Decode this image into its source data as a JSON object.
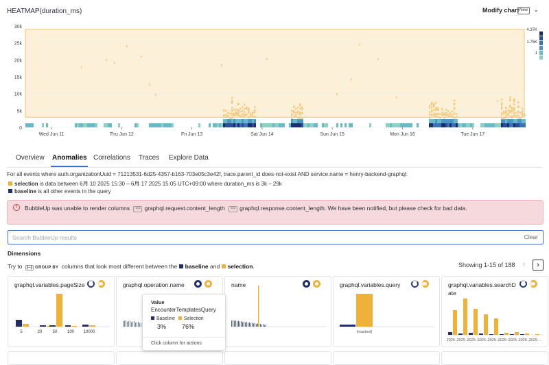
{
  "header": {
    "title": "HEATMAP(duration_ms)",
    "modify_label": "Modify chart",
    "new_badge": "New"
  },
  "chart_data": {
    "type": "heatmap",
    "y_ticks": [
      "30k",
      "25k",
      "20k",
      "15k",
      "10k",
      "5k",
      "0"
    ],
    "x_ticks": [
      "Wed Jun 11",
      "Thu Jun 12",
      "Fri Jun 13",
      "Sat Jun 14",
      "Sun Jun 15",
      "Mon Jun 16",
      "Tue Jun 17"
    ],
    "ylim": [
      0,
      30000
    ],
    "color_scale": {
      "labels": [
        "4.37K",
        "1.75K",
        "1"
      ],
      "colors": [
        "#1f2c6e",
        "#2a4d9c",
        "#3c72b8",
        "#4b96c4",
        "#6ab9c7",
        "#8fd0c2"
      ]
    },
    "selection": {
      "y_range": [
        3000,
        29000
      ],
      "color": "#f5a623"
    }
  },
  "tabs": [
    {
      "label": "Overview"
    },
    {
      "label": "Anomalies"
    },
    {
      "label": "Correlations"
    },
    {
      "label": "Traces"
    },
    {
      "label": "Explore Data"
    }
  ],
  "filter_text": "For all events where auth.organizationUuid = 71213531-6d25-4357-b163-703e05c3e42f, trace.parent_id does-not-exist AND service.name = henry-backend-graphql:",
  "legend": {
    "selection_bold": "selection",
    "selection_text": " is data between 6月 10 2025 15:30 – 6月 17 2025 15:05 UTC+09:00 where duration_ms is 3k – 29k",
    "baseline_bold": "baseline",
    "baseline_text": " is all other events in the query",
    "selection_color": "#f0b139",
    "baseline_color": "#1f2e6b"
  },
  "alert": {
    "text_before": "BubbleUp was unable to render columns",
    "col1": "graphql.request.content_length",
    "col2": "graphql.response.content_length",
    "text_after": ". We have been notified, but please check for bad data."
  },
  "search": {
    "placeholder": "Search BubbleUp results",
    "clear_label": "Clear"
  },
  "dimensions": {
    "heading": "Dimensions",
    "try_prefix": "Try to",
    "group_by": "GROUP BY",
    "try_mid": "columns that look most different between the",
    "baseline_word": "baseline",
    "and_word": "and",
    "selection_word": "selection",
    "showing": "Showing 1-15 of 188"
  },
  "cards": [
    {
      "title": "graphql.variables.pageSize",
      "x_labels": [
        "5",
        "20",
        "50",
        "100",
        "10000"
      ]
    },
    {
      "title": "graphql.operation.name"
    },
    {
      "title": "name"
    },
    {
      "title": "graphql.variables.query",
      "x_label": "(masked)"
    },
    {
      "title": "graphql.variables.searchD",
      "title2": "ate",
      "x_label": "2025-..."
    }
  ],
  "tooltip": {
    "heading": "Value",
    "value": "EncounterTemplatesQuery",
    "baseline_label": "Baseline",
    "selection_label": "Selection",
    "baseline_pct": "3%",
    "selection_pct": "76%",
    "hint": "Click column for actions"
  }
}
